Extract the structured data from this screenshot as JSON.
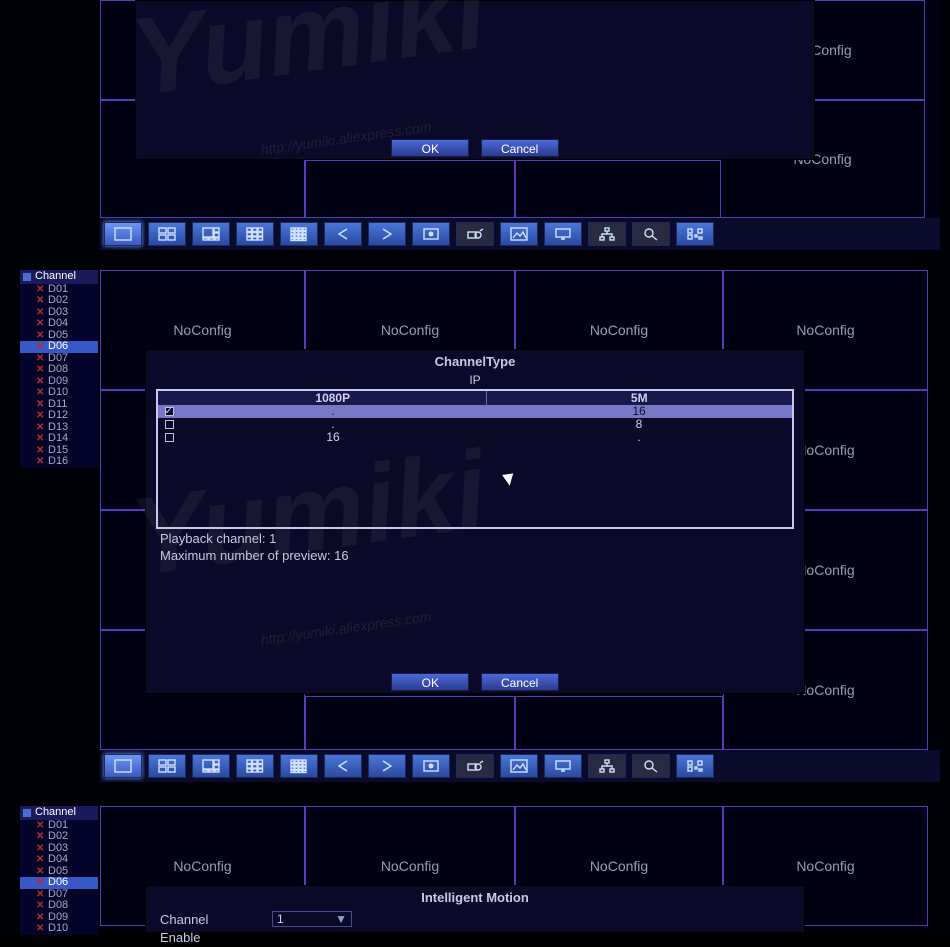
{
  "colors": {
    "bg": "#000008",
    "cellBorder": "#5a3ab8",
    "cellText": "#9a9ab8",
    "dialogBg": "#0a0a28",
    "btnGradTop": "#4a6ad8",
    "btnGradBot": "#2a3a90",
    "selectedRow": "#7878c8",
    "xIcon": "#b82a2a",
    "watermarkColor": "rgba(180,180,180,0.08)"
  },
  "watermark": {
    "big": "Yumiki",
    "small": "http://yumiki.aliexpress.com"
  },
  "buttons": {
    "ok": "OK",
    "cancel": "Cancel"
  },
  "noConfig": "NoConfig",
  "channelTree": {
    "header": "Channel",
    "items": [
      {
        "id": "D01"
      },
      {
        "id": "D02"
      },
      {
        "id": "D03"
      },
      {
        "id": "D04"
      },
      {
        "id": "D05"
      },
      {
        "id": "D06",
        "selected": true
      },
      {
        "id": "D07"
      },
      {
        "id": "D08"
      },
      {
        "id": "D09"
      },
      {
        "id": "D10"
      },
      {
        "id": "D11"
      },
      {
        "id": "D12"
      },
      {
        "id": "D13"
      },
      {
        "id": "D14"
      },
      {
        "id": "D15"
      },
      {
        "id": "D16"
      }
    ]
  },
  "toolbarIcons": [
    "view-1",
    "view-4",
    "view-8",
    "view-9",
    "view-16",
    "arrow-left",
    "arrow-right",
    "rec",
    "ptz",
    "image-setting",
    "display",
    "network",
    "search",
    "qrcode"
  ],
  "channelTypeDialog": {
    "title": "ChannelType",
    "ip": "IP",
    "columns": [
      "1080P",
      "5M"
    ],
    "rows": [
      {
        "checked": true,
        "c1080p": ".",
        "c5m": "16",
        "selected": true
      },
      {
        "checked": false,
        "c1080p": ".",
        "c5m": "8"
      },
      {
        "checked": false,
        "c1080p": "16",
        "c5m": "."
      }
    ],
    "playbackLabel": "Playback channel:",
    "playbackValue": "1",
    "maxPreviewLabel": "Maximum number of preview:",
    "maxPreviewValue": "16"
  },
  "intelligentMotion": {
    "title": "Intelligent Motion",
    "channelLabel": "Channel",
    "channelValue": "1",
    "enableLabel": "Enable"
  },
  "section3Channels": [
    {
      "id": "D01"
    },
    {
      "id": "D02"
    },
    {
      "id": "D03"
    },
    {
      "id": "D04"
    },
    {
      "id": "D05"
    },
    {
      "id": "D06",
      "selected": true
    },
    {
      "id": "D07"
    },
    {
      "id": "D08"
    },
    {
      "id": "D09"
    },
    {
      "id": "D10"
    }
  ]
}
